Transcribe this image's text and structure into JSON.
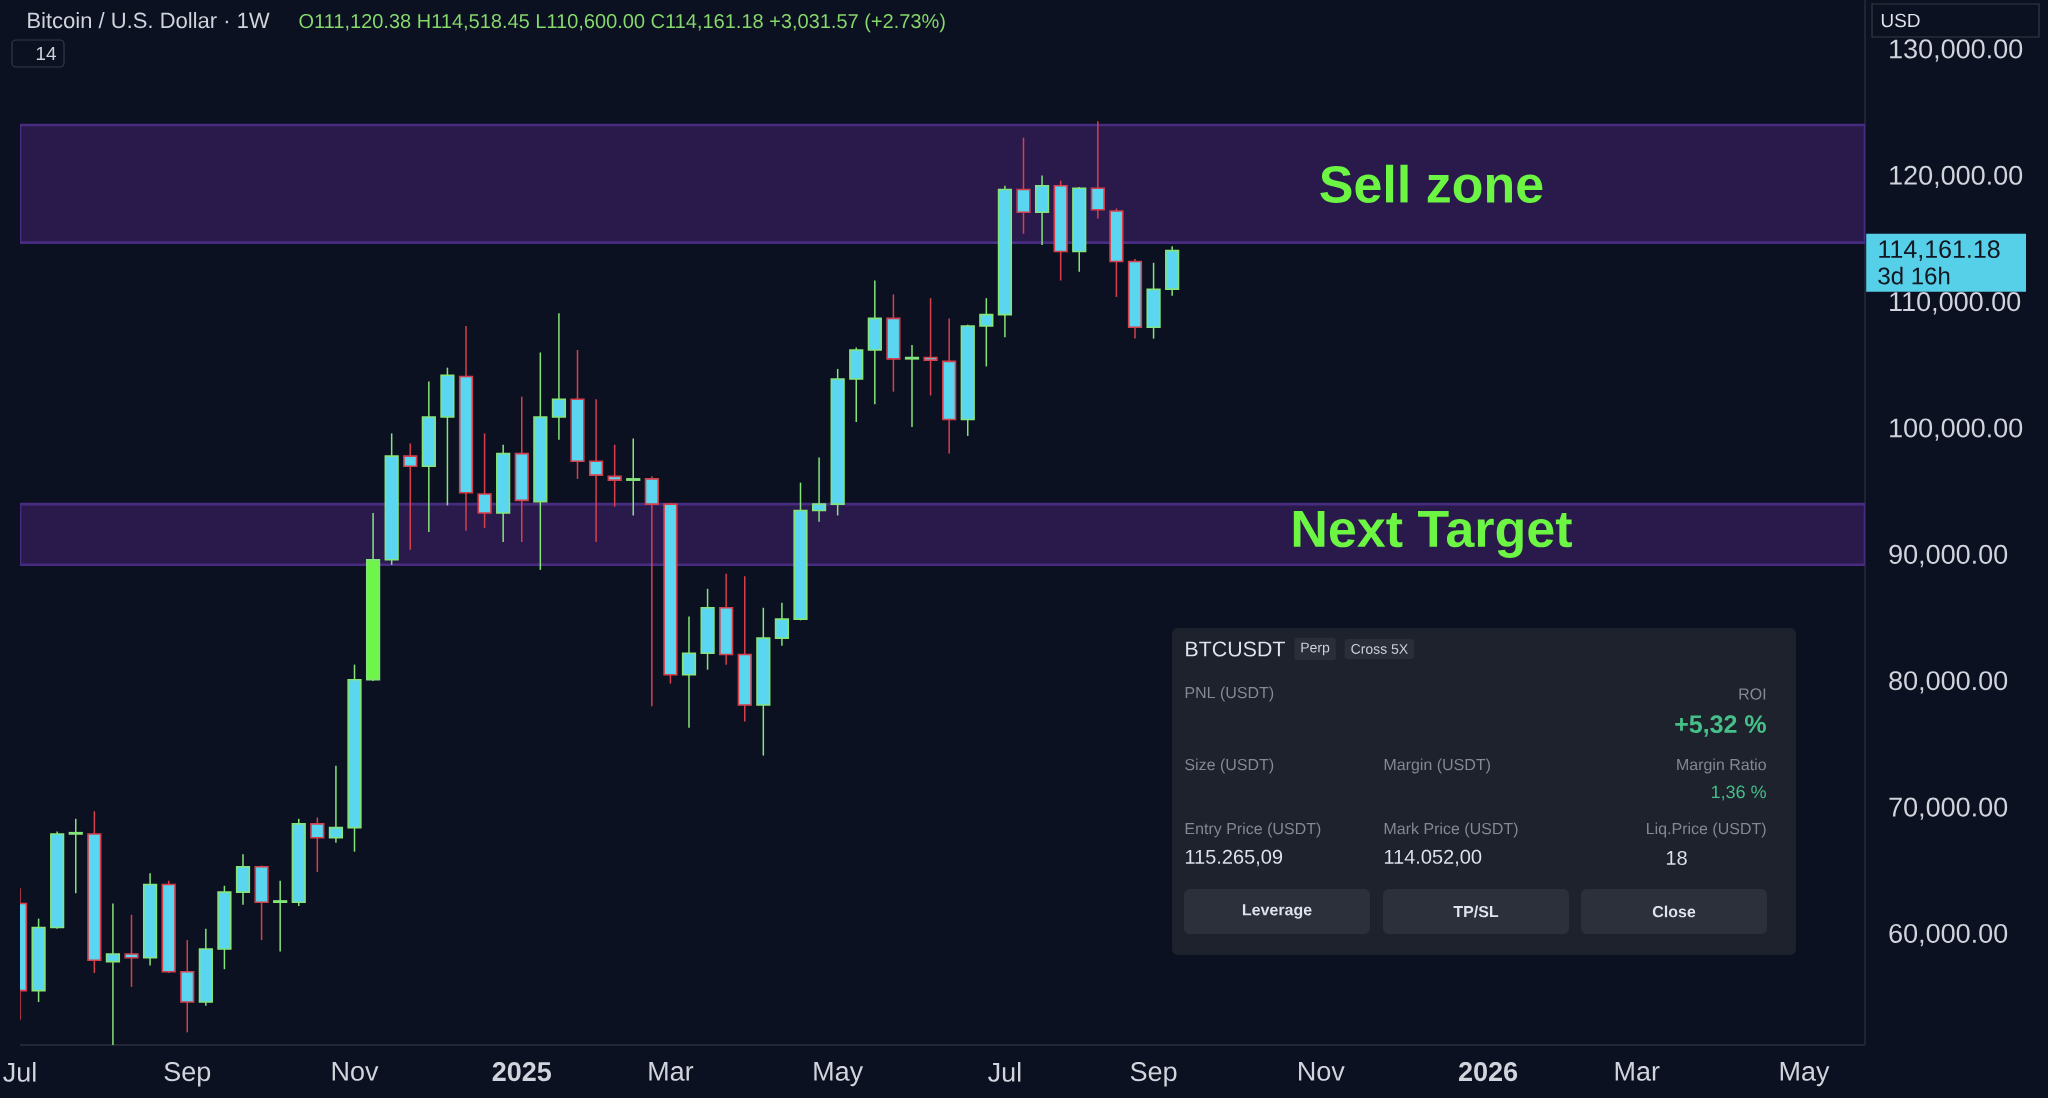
{
  "chart_data": [
    {
      "type": "candlestick",
      "title": "Bitcoin / U.S. Dollar · 1W",
      "subtitle": "O111,120.38 H114,518.45 L110,600.00 C114,161.18 +3,031.57 (+2.73%)",
      "series": [
        {
          "color": "#84E47A",
          "x": [
            "2024-07-08",
            "2024-07-15",
            "2024-07-22",
            "2024-08-05",
            "2024-08-19",
            "2024-09-09",
            "2024-09-16",
            "2024-09-23",
            "2024-10-07",
            "2024-10-14",
            "2024-10-28",
            "2024-11-04",
            "2024-11-11",
            "2024-11-18",
            "2024-12-02",
            "2024-12-09",
            "2024-12-30",
            "2025-01-13",
            "2025-01-20",
            "2025-02-17",
            "2025-03-10",
            "2025-03-17",
            "2025-04-07",
            "2025-04-14",
            "2025-04-21",
            "2025-04-28",
            "2025-05-05",
            "2025-05-12",
            "2025-05-19",
            "2025-06-02",
            "2025-06-23",
            "2025-06-30",
            "2025-07-07",
            "2025-07-21",
            "2025-08-04",
            "2025-09-01",
            "2025-09-08"
          ],
          "ohlc": [
            [
              55600,
              61300,
              54700,
              60600
            ],
            [
              60600,
              68200,
              60500,
              68000
            ],
            [
              68000,
              69200,
              63300,
              68100
            ],
            [
              57900,
              62500,
              51300,
              58500
            ],
            [
              58200,
              64900,
              57600,
              64000
            ],
            [
              54700,
              60500,
              54400,
              58900
            ],
            [
              58900,
              63900,
              57300,
              63400
            ],
            [
              63400,
              66400,
              62400,
              65400
            ],
            [
              62600,
              64300,
              58700,
              62700
            ],
            [
              62600,
              69200,
              62300,
              68800
            ],
            [
              67700,
              73400,
              67300,
              68500
            ],
            [
              68500,
              81400,
              66600,
              80200
            ],
            [
              80200,
              93400,
              80100,
              89700
            ],
            [
              89700,
              99700,
              89300,
              97900
            ],
            [
              97100,
              103800,
              91900,
              101000
            ],
            [
              101000,
              104900,
              94000,
              104300
            ],
            [
              93400,
              98800,
              91100,
              98100
            ],
            [
              94300,
              106100,
              88900,
              101000
            ],
            [
              101000,
              109200,
              99200,
              102400
            ],
            [
              96000,
              99300,
              93200,
              96100
            ],
            [
              80600,
              85200,
              76400,
              82300
            ],
            [
              82300,
              87400,
              81000,
              85900
            ],
            [
              78200,
              85900,
              74200,
              83500
            ],
            [
              83500,
              86300,
              82900,
              85000
            ],
            [
              85000,
              95800,
              84900,
              93600
            ],
            [
              93600,
              97800,
              92700,
              94100
            ],
            [
              94100,
              104800,
              93200,
              104000
            ],
            [
              104000,
              106500,
              100600,
              106300
            ],
            [
              106300,
              111800,
              102000,
              108800
            ],
            [
              105600,
              106700,
              100200,
              105700
            ],
            [
              100800,
              108300,
              99500,
              108200
            ],
            [
              108200,
              110400,
              105000,
              109100
            ],
            [
              109100,
              119300,
              107300,
              119000
            ],
            [
              117200,
              120100,
              114600,
              119300
            ],
            [
              114100,
              119200,
              112500,
              119100
            ],
            [
              108100,
              113200,
              107200,
              111100
            ],
            [
              111120.38,
              114518.45,
              110600.0,
              114161.18
            ]
          ],
          "colors": [
            "#5AD6F0",
            "#5AD6F0",
            "#5AD6F0",
            "#5AD6F0",
            "#5AD6F0",
            "#5AD6F0",
            "#5AD6F0",
            "#5AD6F0",
            "#5AD6F0",
            "#5AD6F0",
            "#5AD6F0",
            "#5AD6F0",
            "#6EF54A",
            "#5AD6F0",
            "#5AD6F0",
            "#5AD6F0",
            "#5AD6F0",
            "#5AD6F0",
            "#5AD6F0",
            "#5AD6F0",
            "#5AD6F0",
            "#5AD6F0",
            "#5AD6F0",
            "#5AD6F0",
            "#5AD6F0",
            "#5AD6F0",
            "#5AD6F0",
            "#5AD6F0",
            "#5AD6F0",
            "#5AD6F0",
            "#5AD6F0",
            "#5AD6F0",
            "#5AD6F0",
            "#5AD6F0",
            "#5AD6F0",
            "#5AD6F0",
            "#5AD6F0"
          ]
        },
        {
          "color": "#D6404C",
          "x": [
            "2024-07-01",
            "2024-07-29",
            "2024-08-12",
            "2024-08-26",
            "2024-09-02",
            "2024-09-30",
            "2024-10-21",
            "2024-11-25",
            "2024-12-16",
            "2024-12-23",
            "2025-01-06",
            "2025-01-27",
            "2025-02-03",
            "2025-02-10",
            "2025-02-24",
            "2025-03-03",
            "2025-03-24",
            "2025-03-31",
            "2025-05-26",
            "2025-06-09",
            "2025-06-16",
            "2025-07-14",
            "2025-07-28",
            "2025-08-11",
            "2025-08-18",
            "2025-08-25"
          ],
          "ohlc": [
            [
              62500,
              63700,
              53300,
              55600
            ],
            [
              68000,
              69800,
              57000,
              58000
            ],
            [
              58500,
              61600,
              55900,
              58200
            ],
            [
              64000,
              64300,
              57000,
              57100
            ],
            [
              57100,
              59600,
              52300,
              54700
            ],
            [
              65400,
              65500,
              59600,
              62600
            ],
            [
              68800,
              69300,
              65000,
              67700
            ],
            [
              97900,
              98900,
              90500,
              97100
            ],
            [
              104200,
              108200,
              92000,
              95000
            ],
            [
              94900,
              99700,
              92200,
              93400
            ],
            [
              98100,
              102600,
              91100,
              94400
            ],
            [
              102400,
              106300,
              96100,
              97500
            ],
            [
              97500,
              102400,
              91100,
              96400
            ],
            [
              96300,
              98800,
              93900,
              96000
            ],
            [
              96100,
              96300,
              78100,
              94100
            ],
            [
              94100,
              94200,
              79900,
              80600
            ],
            [
              85900,
              88600,
              81400,
              82200
            ],
            [
              82200,
              88400,
              76900,
              78200
            ],
            [
              108800,
              110700,
              103000,
              105600
            ],
            [
              105700,
              110400,
              102700,
              105500
            ],
            [
              105400,
              108800,
              98100,
              100800
            ],
            [
              119000,
              123100,
              115500,
              117200
            ],
            [
              119300,
              119700,
              111800,
              114100
            ],
            [
              119100,
              124400,
              116700,
              117400
            ],
            [
              117300,
              117500,
              110500,
              113300
            ],
            [
              113300,
              113500,
              107200,
              108100
            ]
          ],
          "colors": [
            "#5AD6F0",
            "#5AD6F0",
            "#5AD6F0",
            "#5AD6F0",
            "#5AD6F0",
            "#5AD6F0",
            "#5AD6F0",
            "#5AD6F0",
            "#5AD6F0",
            "#5AD6F0",
            "#5AD6F0",
            "#5AD6F0",
            "#5AD6F0",
            "#5AD6F0",
            "#5AD6F0",
            "#5AD6F0",
            "#5AD6F0",
            "#5AD6F0",
            "#5AD6F0",
            "#5AD6F0",
            "#5AD6F0",
            "#5AD6F0",
            "#5AD6F0",
            "#5AD6F0",
            "#5AD6F0",
            "#5AD6F0"
          ]
        }
      ],
      "xlim": [
        "2024-07-01",
        "2026-05-27"
      ],
      "xticks": [
        {
          "value": "2024-07-01",
          "label": "Jul"
        },
        {
          "value": "2024-09-02",
          "label": "Sep"
        },
        {
          "value": "2024-11-04",
          "label": "Nov"
        },
        {
          "value": "2025-01-06",
          "label": "2025"
        },
        {
          "value": "2025-03-03",
          "label": "Mar"
        },
        {
          "value": "2025-05-05",
          "label": "May"
        },
        {
          "value": "2025-07-07",
          "label": "Jul"
        },
        {
          "value": "2025-09-01",
          "label": "Sep"
        },
        {
          "value": "2025-11-03",
          "label": "Nov"
        },
        {
          "value": "2026-01-05",
          "label": "2026"
        },
        {
          "value": "2026-03-02",
          "label": "Mar"
        },
        {
          "value": "2026-05-04",
          "label": "May"
        }
      ],
      "ylim": [
        51300,
        134000
      ],
      "yticks": [
        {
          "value": 60000,
          "label": "60,000.00"
        },
        {
          "value": 70000,
          "label": "70,000.00"
        },
        {
          "value": 80000,
          "label": "80,000.00"
        },
        {
          "value": 90000,
          "label": "90,000.00"
        },
        {
          "value": 100000,
          "label": "100,000.00"
        },
        {
          "value": 110000,
          "label": "110,000.00"
        },
        {
          "value": 120000,
          "label": "120,000.00"
        },
        {
          "value": 130000,
          "label": "130,000.00"
        }
      ],
      "bands": [
        {
          "axis": "y",
          "from": 114800,
          "to": 124100,
          "label": "Sell zone",
          "color": "#2A1A4C"
        },
        {
          "axis": "y",
          "from": 89300,
          "to": 94100,
          "label": "Next Target",
          "color": "#2A1A4C"
        }
      ],
      "annotations": [
        "114,161.18",
        "3d 16h",
        "14",
        "USD"
      ]
    },
    {
      "type": "other",
      "title": "BTCUSDT",
      "annotations": [
        "Perp",
        "Cross 5X",
        "PNL (USDT)",
        "ROI",
        "+5,32 %",
        "Size (USDT)",
        "Margin (USDT)",
        "Margin Ratio",
        "1,36 %",
        "Entry Price (USDT)",
        "Mark Price (USDT)",
        "Liq.Price (USDT)",
        "115.265,09",
        "114.052,00",
        "18",
        "Leverage",
        "TP/SL",
        "Close"
      ]
    }
  ]
}
